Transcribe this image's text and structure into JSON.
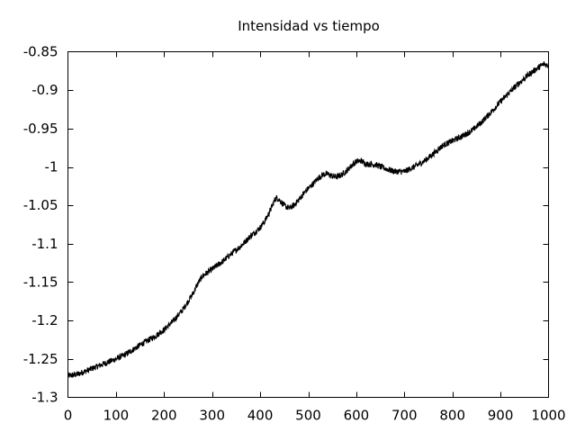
{
  "chart_data": {
    "type": "line",
    "title": "Intensidad vs tiempo",
    "xlabel": "",
    "ylabel": "",
    "xlim": [
      0,
      1000
    ],
    "ylim": [
      -1.3,
      -0.85
    ],
    "x_ticks": [
      "0",
      "100",
      "200",
      "300",
      "400",
      "500",
      "600",
      "700",
      "800",
      "900",
      "1000"
    ],
    "y_ticks": [
      "-1.3",
      "-1.25",
      "-1.2",
      "-1.15",
      "-1.1",
      "-1.05",
      "-1",
      "-0.95",
      "-0.9",
      "-0.85"
    ],
    "grid": false,
    "legend": "none",
    "series": [
      {
        "color": "#000000",
        "noise_amplitude": 0.004,
        "x": [
          0,
          20,
          40,
          60,
          80,
          100,
          120,
          140,
          160,
          180,
          200,
          220,
          240,
          260,
          270,
          280,
          300,
          320,
          340,
          360,
          380,
          400,
          410,
          420,
          430,
          435,
          440,
          450,
          460,
          470,
          480,
          490,
          500,
          510,
          520,
          530,
          540,
          550,
          560,
          570,
          580,
          590,
          600,
          610,
          620,
          640,
          660,
          680,
          700,
          720,
          740,
          760,
          780,
          800,
          820,
          840,
          860,
          880,
          900,
          920,
          940,
          960,
          980,
          990,
          1000
        ],
        "y": [
          -1.272,
          -1.27,
          -1.265,
          -1.26,
          -1.255,
          -1.25,
          -1.244,
          -1.236,
          -1.228,
          -1.221,
          -1.212,
          -1.2,
          -1.185,
          -1.165,
          -1.152,
          -1.142,
          -1.133,
          -1.124,
          -1.113,
          -1.103,
          -1.09,
          -1.079,
          -1.07,
          -1.058,
          -1.043,
          -1.04,
          -1.043,
          -1.05,
          -1.054,
          -1.05,
          -1.043,
          -1.035,
          -1.028,
          -1.022,
          -1.015,
          -1.01,
          -1.009,
          -1.012,
          -1.013,
          -1.01,
          -1.005,
          -0.998,
          -0.993,
          -0.992,
          -0.996,
          -0.997,
          -1.002,
          -1.006,
          -1.006,
          -1.0,
          -0.993,
          -0.983,
          -0.972,
          -0.966,
          -0.96,
          -0.953,
          -0.942,
          -0.929,
          -0.915,
          -0.902,
          -0.89,
          -0.879,
          -0.87,
          -0.866,
          -0.868
        ]
      }
    ]
  }
}
